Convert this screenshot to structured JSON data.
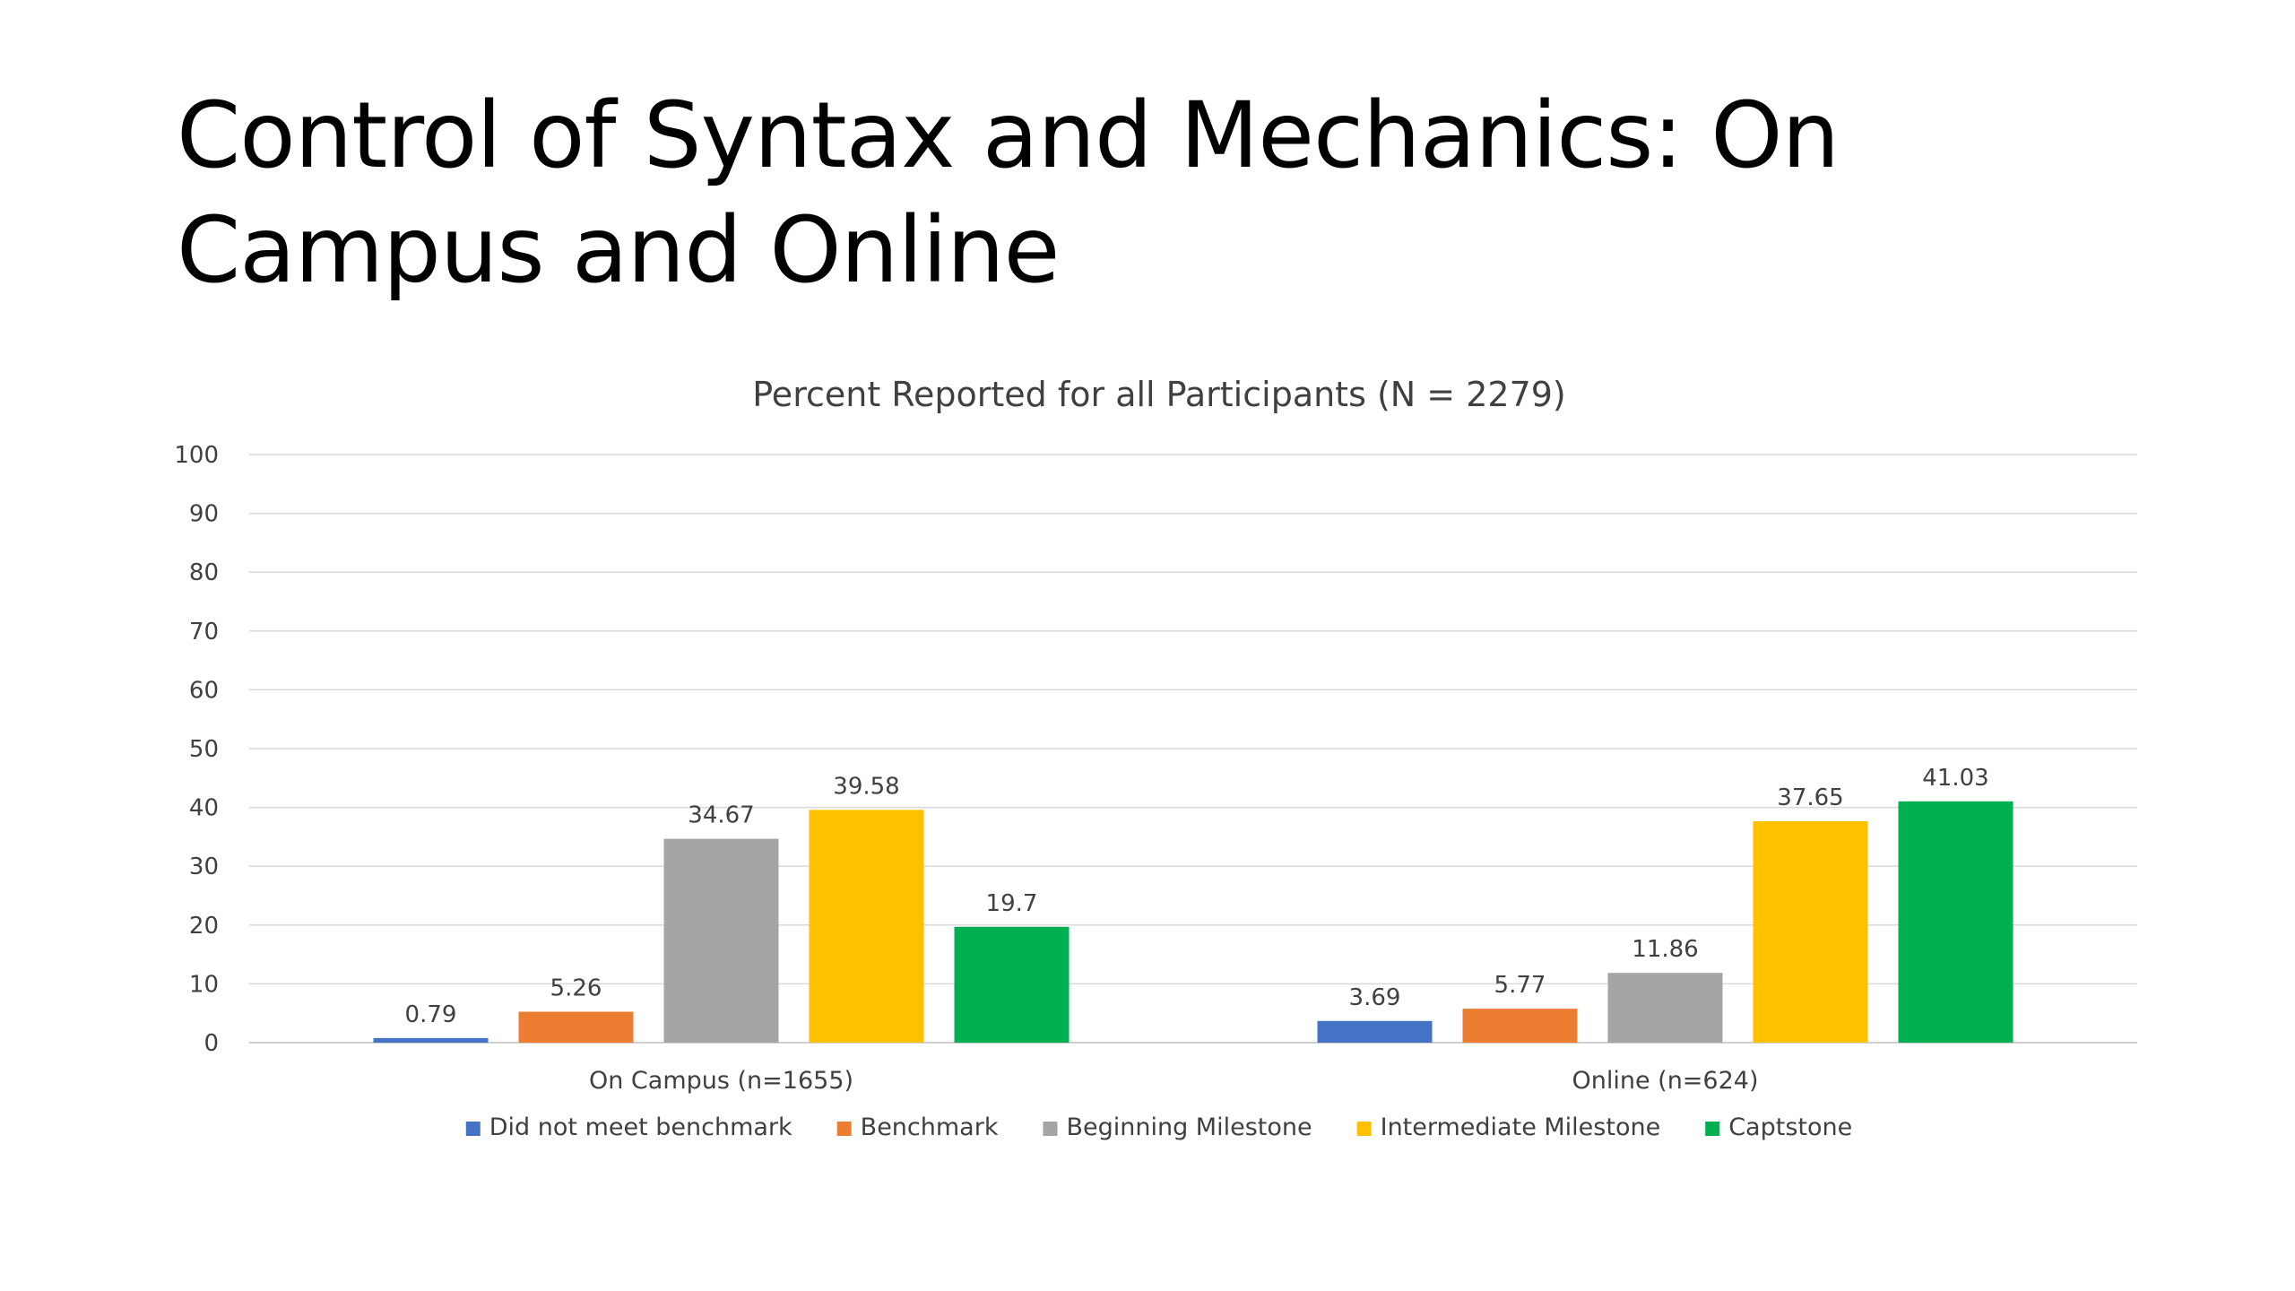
{
  "slide": {
    "title": "Control of Syntax and Mechanics: On Campus and Online"
  },
  "chart_data": {
    "type": "bar",
    "title": "Percent Reported for all Participants (N = 2279)",
    "xlabel": "",
    "ylabel": "",
    "ylim": [
      0,
      100
    ],
    "yticks": [
      0,
      10,
      20,
      30,
      40,
      50,
      60,
      70,
      80,
      90,
      100
    ],
    "grid": true,
    "legend_position": "bottom",
    "categories": [
      "On Campus (n=1655)",
      "Online (n=624)"
    ],
    "series": [
      {
        "name": "Did not meet benchmark",
        "color": "#4472C4",
        "values": [
          0.79,
          3.69
        ]
      },
      {
        "name": "Benchmark",
        "color": "#ED7D31",
        "values": [
          5.26,
          5.77
        ]
      },
      {
        "name": "Beginning Milestone",
        "color": "#A5A5A5",
        "values": [
          34.67,
          11.86
        ]
      },
      {
        "name": "Intermediate Milestone",
        "color": "#FFC000",
        "values": [
          39.58,
          37.65
        ]
      },
      {
        "name": "Captstone",
        "color": "#00B050",
        "values": [
          19.7,
          41.03
        ]
      }
    ]
  }
}
